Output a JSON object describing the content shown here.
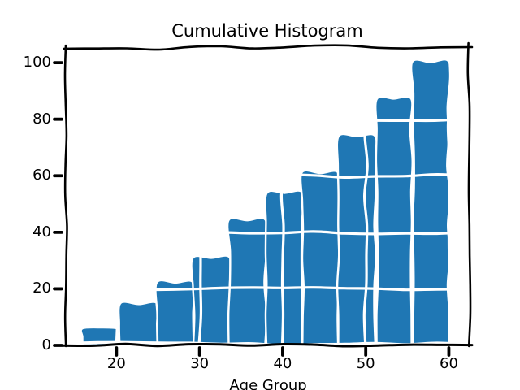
{
  "chart_data": {
    "type": "bar",
    "subtype": "cumulative-histogram",
    "style": "xkcd-hand-drawn",
    "title": "Cumulative Histogram",
    "xlabel": "Age Group",
    "ylabel": "",
    "bin_edges": [
      16.0,
      20.4,
      24.8,
      29.2,
      33.6,
      38.0,
      42.4,
      46.8,
      51.2,
      55.6,
      60.0
    ],
    "values": [
      6,
      15,
      22,
      31,
      44,
      54,
      61,
      74,
      87,
      100
    ],
    "xticks": [
      20,
      30,
      40,
      50,
      60
    ],
    "yticks": [
      0,
      20,
      40,
      60,
      80,
      100
    ],
    "xlim": [
      13.9,
      62.4
    ],
    "ylim": [
      0,
      105.5
    ],
    "grid": true,
    "legend": false,
    "colors": {
      "bar_fill": "#1f77b4",
      "bar_edge": "#ffffff",
      "grid": "#ffffff",
      "spine": "#000000",
      "background": "#ffffff",
      "text": "#000000"
    }
  }
}
